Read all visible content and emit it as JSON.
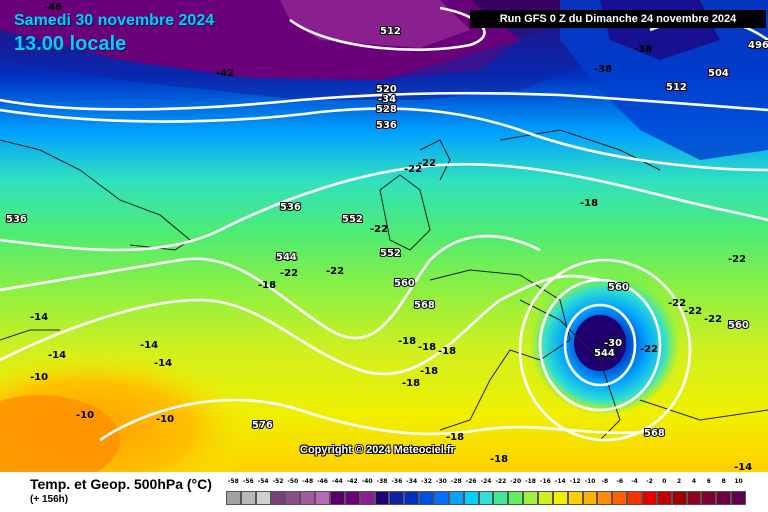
{
  "header": {
    "date": "Samedi 30 novembre 2024",
    "time": "13.00 locale",
    "run": "Run GFS 0 Z du Dimanche 24 novembre 2024"
  },
  "copyright": "Copyright © 2024 Meteociel.fr",
  "legend": {
    "title": "Temp. et Geop. 500hPa (°C)",
    "lead": "(+ 156h)",
    "ticks": [
      "-58",
      "-56",
      "-54",
      "-52",
      "-50",
      "-48",
      "-46",
      "-44",
      "-42",
      "-40",
      "-38",
      "-36",
      "-34",
      "-32",
      "-30",
      "-28",
      "-26",
      "-24",
      "-22",
      "-20",
      "-18",
      "-16",
      "-14",
      "-12",
      "-10",
      "-8",
      "-6",
      "-4",
      "-2",
      "0",
      "2",
      "4",
      "6",
      "8",
      "10"
    ],
    "colors": [
      "#a0a0a0",
      "#b8b8b8",
      "#d0d0d0",
      "#7a3f7a",
      "#8e4c8e",
      "#a05aa0",
      "#b868b8",
      "#55006a",
      "#6a007a",
      "#8a2090",
      "#20007a",
      "#1020a0",
      "#0030c0",
      "#0050e0",
      "#0070ff",
      "#00a0ff",
      "#00d0ff",
      "#30e0d0",
      "#40e890",
      "#60f060",
      "#a0f040",
      "#d0f020",
      "#f0f000",
      "#ffd000",
      "#ffb000",
      "#ff8c00",
      "#ff6000",
      "#ff3000",
      "#e00000",
      "#c00000",
      "#a00000",
      "#900020",
      "#800030",
      "#700040",
      "#600050"
    ]
  },
  "map": {
    "geopotential_labels": [
      "512",
      "520",
      "528",
      "536",
      "536",
      "536",
      "544",
      "552",
      "552",
      "560",
      "560",
      "560",
      "568",
      "568",
      "576",
      "504",
      "496",
      "512",
      "544"
    ],
    "temperature_labels": [
      "-46",
      "-42",
      "-38",
      "-38",
      "-34",
      "-22",
      "-22",
      "-22",
      "-22",
      "-22",
      "-18",
      "-18",
      "-18",
      "-18",
      "-18",
      "-18",
      "-14",
      "-14",
      "-14",
      "-14",
      "-10",
      "-10",
      "-10",
      "-30",
      "-22",
      "-22",
      "-22",
      "-22",
      "-22",
      "-18",
      "-18",
      "-18",
      "-14"
    ]
  }
}
